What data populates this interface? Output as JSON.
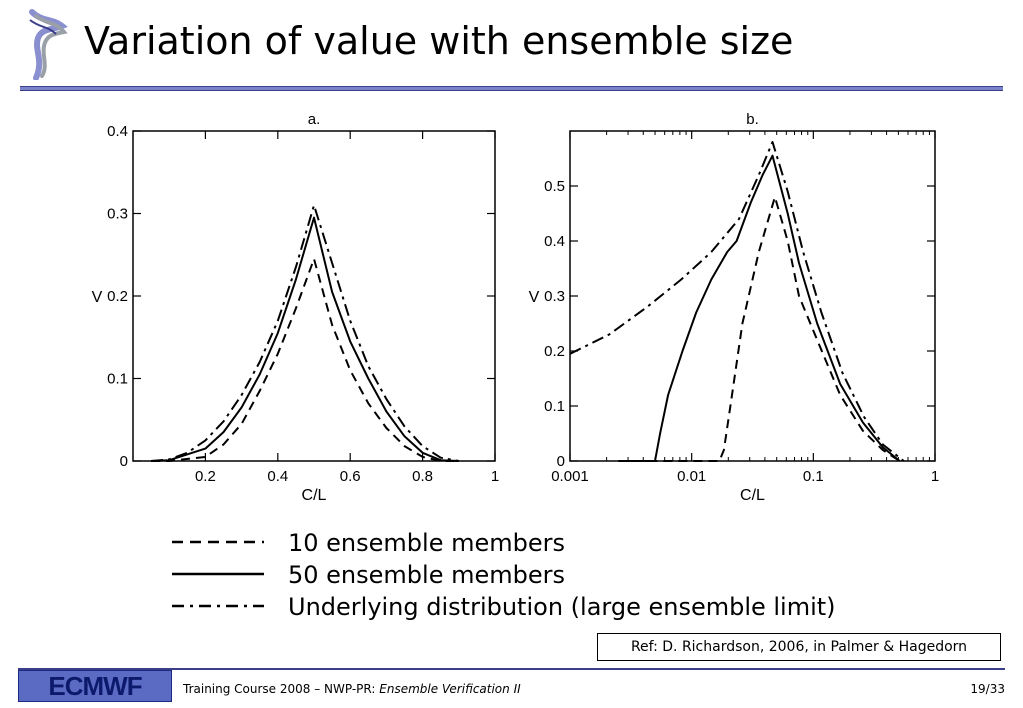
{
  "slide": {
    "title": "Variation of value with ensemble size",
    "ref": "Ref: D. Richardson, 2006, in Palmer & Hagedorn",
    "footer": {
      "logo_text": "ECMWF",
      "course_prefix": "Training Course 2008 – NWP-PR: ",
      "course_title": "Ensemble Verification II",
      "page": "19/33"
    },
    "legend": [
      {
        "label": "10 ensemble members",
        "style": "dashed"
      },
      {
        "label": "50 ensemble members",
        "style": "solid"
      },
      {
        "label": "Underlying distribution (large ensemble limit)",
        "style": "dashdot"
      }
    ],
    "colors": {
      "accent": "#7b84c8",
      "logo_bg": "#5b6bc4",
      "line": "#000000"
    },
    "icons": {
      "logo": "ecmwf-swirl-logo-icon"
    }
  },
  "chart_data": [
    {
      "type": "line",
      "title": "a.",
      "xlabel": "C/L",
      "ylabel": "V",
      "xscale": "linear",
      "xlim": [
        0,
        1
      ],
      "ylim": [
        0,
        0.4
      ],
      "xticks": [
        0.2,
        0.4,
        0.6,
        0.8,
        1
      ],
      "xtick_labels": [
        "0.2",
        "0.4",
        "0.6",
        "0.8",
        "1"
      ],
      "yticks": [
        0,
        0.1,
        0.2,
        0.3,
        0.4
      ],
      "ytick_labels": [
        "0",
        "0.1",
        "0.2",
        "0.3",
        "0.4"
      ],
      "series": [
        {
          "style": "dashed",
          "x": [
            0.05,
            0.1,
            0.2,
            0.25,
            0.3,
            0.35,
            0.4,
            0.45,
            0.5,
            0.55,
            0.6,
            0.65,
            0.7,
            0.75,
            0.8,
            0.85,
            0.9
          ],
          "y": [
            0,
            0,
            0.005,
            0.02,
            0.045,
            0.085,
            0.13,
            0.185,
            0.245,
            0.165,
            0.11,
            0.07,
            0.04,
            0.018,
            0.005,
            0,
            0
          ]
        },
        {
          "style": "solid",
          "x": [
            0.05,
            0.1,
            0.2,
            0.25,
            0.3,
            0.35,
            0.4,
            0.45,
            0.5,
            0.55,
            0.6,
            0.65,
            0.7,
            0.75,
            0.8,
            0.85,
            0.9
          ],
          "y": [
            0,
            0.001,
            0.015,
            0.035,
            0.065,
            0.105,
            0.155,
            0.22,
            0.295,
            0.205,
            0.145,
            0.1,
            0.06,
            0.03,
            0.01,
            0.001,
            0
          ]
        },
        {
          "style": "dashdot",
          "x": [
            0.05,
            0.1,
            0.15,
            0.2,
            0.25,
            0.3,
            0.35,
            0.4,
            0.45,
            0.5,
            0.55,
            0.6,
            0.65,
            0.7,
            0.75,
            0.8,
            0.85,
            0.9
          ],
          "y": [
            0,
            0.002,
            0.01,
            0.025,
            0.048,
            0.08,
            0.12,
            0.17,
            0.235,
            0.31,
            0.24,
            0.17,
            0.115,
            0.075,
            0.042,
            0.018,
            0.004,
            0
          ]
        }
      ]
    },
    {
      "type": "line",
      "title": "b.",
      "xlabel": "C/L",
      "ylabel": "V",
      "xscale": "log",
      "xlim": [
        0.001,
        1
      ],
      "ylim": [
        0,
        0.6
      ],
      "xticks": [
        0.001,
        0.01,
        0.1,
        1
      ],
      "xtick_labels": [
        "0.001",
        "0.01",
        "0.1",
        "1"
      ],
      "yticks": [
        0,
        0.1,
        0.2,
        0.3,
        0.4,
        0.5
      ],
      "ytick_labels": [
        "0",
        "0.1",
        "0.2",
        "0.3",
        "0.4",
        "0.5"
      ],
      "series": [
        {
          "style": "dashed",
          "x": [
            0.0025,
            0.0169,
            0.0184,
            0.0208,
            0.0261,
            0.0356,
            0.0483,
            0.0616,
            0.0763,
            0.1076,
            0.1662,
            0.2556,
            0.3726,
            0.5129
          ],
          "y": [
            0,
            0,
            0.02,
            0.1,
            0.25,
            0.38,
            0.48,
            0.4,
            0.3,
            0.22,
            0.12,
            0.055,
            0.02,
            0
          ]
        },
        {
          "style": "solid",
          "x": [
            0.0025,
            0.005,
            0.0055,
            0.0064,
            0.0084,
            0.0109,
            0.0145,
            0.0196,
            0.0234,
            0.0306,
            0.0383,
            0.0462,
            0.0616,
            0.0763,
            0.1076,
            0.1662,
            0.2556,
            0.3726,
            0.5129
          ],
          "y": [
            0,
            0,
            0.05,
            0.12,
            0.2,
            0.27,
            0.33,
            0.38,
            0.4,
            0.47,
            0.52,
            0.555,
            0.45,
            0.36,
            0.25,
            0.14,
            0.07,
            0.025,
            0
          ]
        },
        {
          "style": "dashdot",
          "x": [
            0.001,
            0.0021,
            0.0043,
            0.0082,
            0.0145,
            0.0245,
            0.0356,
            0.0462,
            0.0616,
            0.0825,
            0.1164,
            0.1737,
            0.2612,
            0.3726,
            0.5541
          ],
          "y": [
            0.195,
            0.23,
            0.28,
            0.33,
            0.38,
            0.44,
            0.52,
            0.58,
            0.49,
            0.38,
            0.27,
            0.16,
            0.08,
            0.03,
            0
          ]
        }
      ]
    }
  ]
}
